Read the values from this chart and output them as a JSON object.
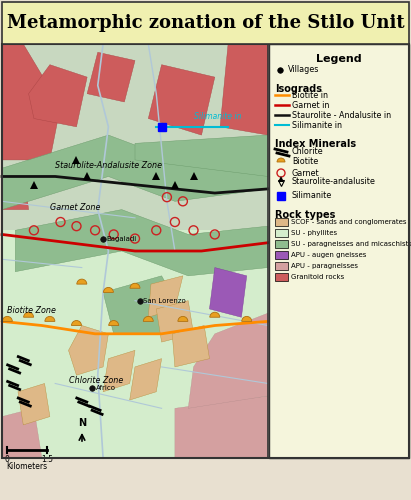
{
  "title": "Metamorphic zonation of the Stilo Unit",
  "title_fontsize": 13,
  "figsize": [
    4.11,
    5.0
  ],
  "dpi": 100,
  "legend_title": "Legend",
  "legend_items_villages": "Villages",
  "legend_isograds_title": "Isograds",
  "legend_index_title": "Index Minerals",
  "legend_rock_title": "Rock types",
  "isograd_biotite": "Biotite in",
  "isograd_garnet": "Garnet in",
  "isograd_staurolite": "Staurolite - Andalusite in",
  "isograd_sillimanite": "Silimanite in",
  "idx_chlorite": "Chlorite",
  "idx_biotite": "Biotite",
  "idx_garnet": "Garnet",
  "idx_staurolite": "Staurolite-andalusite",
  "idx_sillimanite": "Silimanite",
  "rock_scof": "SCOF - sands and conglomerates",
  "rock_su_phyl": "SU - phyllites",
  "rock_su_para": "SU - paragneisses and micaschists",
  "rock_apu_augen": "APU - augen gneisses",
  "rock_apu_para": "APU - paragneisses",
  "rock_granitoid": "Granitoid rocks",
  "rock_colors": {
    "scof": "#deb887",
    "su_phyl": "#d4edcc",
    "su_para": "#8fbc8f",
    "apu_augen": "#9b59b6",
    "apu_para": "#d4a0a0",
    "granitoid": "#cd5c5c"
  },
  "title_bg": "#f0f0b0",
  "legend_bg": "#f5f5dc",
  "map_bg": "#c8d8c0",
  "border_color": "#333333",
  "orange_isograd": "#ff8c00",
  "red_isograd": "#cc0000",
  "black_isograd": "#111111",
  "cyan_isograd": "#00bcd4",
  "river_color": "#b0c8d8",
  "garnet_circle_color": "#cc2222",
  "biotite_color": "#e8a020",
  "village_color": "#111111"
}
